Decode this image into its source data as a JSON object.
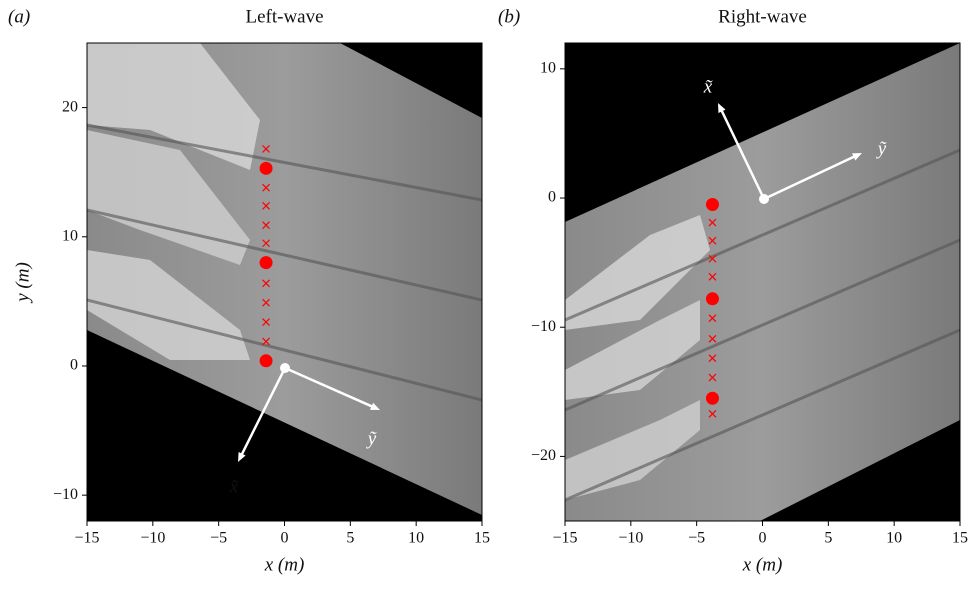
{
  "chart_data": [
    {
      "type": "scatter",
      "panel_label": "(a)",
      "title": "Left-wave",
      "x_label": "x (m)",
      "y_label": "y (m)",
      "xlim": [
        -15,
        15
      ],
      "ylim": [
        -12,
        25
      ],
      "xticks": [
        {
          "value": -15,
          "label": "−15"
        },
        {
          "value": -10,
          "label": "−10"
        },
        {
          "value": -5,
          "label": "−5"
        },
        0,
        5,
        10,
        15
      ],
      "yticks": [
        {
          "value": -10,
          "label": "−10"
        },
        0,
        10,
        20
      ],
      "series": [
        {
          "marker": "circle",
          "color": "#ff0000",
          "x": [
            -1.4,
            -1.4,
            -1.4
          ],
          "values": [
            15.3,
            8.0,
            0.4
          ]
        },
        {
          "marker": "cross",
          "color": "#ff0000",
          "x": [
            -1.4,
            -1.4,
            -1.4,
            -1.4,
            -1.4,
            -1.4,
            -1.4,
            -1.4,
            -1.4
          ],
          "values": [
            16.8,
            13.8,
            12.4,
            10.9,
            9.5,
            6.4,
            4.9,
            3.4,
            1.9
          ]
        }
      ],
      "annotations": [
        "x̃",
        "ỹ"
      ]
    },
    {
      "type": "scatter",
      "panel_label": "(b)",
      "title": "Right-wave",
      "x_label": "x (m)",
      "xlim": [
        -15,
        15
      ],
      "ylim": [
        -25,
        12
      ],
      "xticks": [
        {
          "value": -15,
          "label": "−15"
        },
        {
          "value": -10,
          "label": "−10"
        },
        {
          "value": -5,
          "label": "−5"
        },
        0,
        5,
        10,
        15
      ],
      "yticks": [
        {
          "value": -20,
          "label": "−20"
        },
        {
          "value": -10,
          "label": "−10"
        },
        0,
        10
      ],
      "series": [
        {
          "marker": "circle",
          "color": "#ff0000",
          "x": [
            -3.8,
            -3.8,
            -3.8
          ],
          "values": [
            -0.5,
            -7.8,
            -15.5
          ]
        },
        {
          "marker": "cross",
          "color": "#ff0000",
          "x": [
            -3.8,
            -3.8,
            -3.8,
            -3.8,
            -3.8,
            -3.8,
            -3.8,
            -3.8,
            -3.8
          ],
          "values": [
            -1.9,
            -3.3,
            -4.7,
            -6.1,
            -9.3,
            -10.9,
            -12.4,
            -13.9,
            -16.7
          ]
        }
      ],
      "annotations": [
        "x̃",
        "ỹ"
      ]
    }
  ]
}
